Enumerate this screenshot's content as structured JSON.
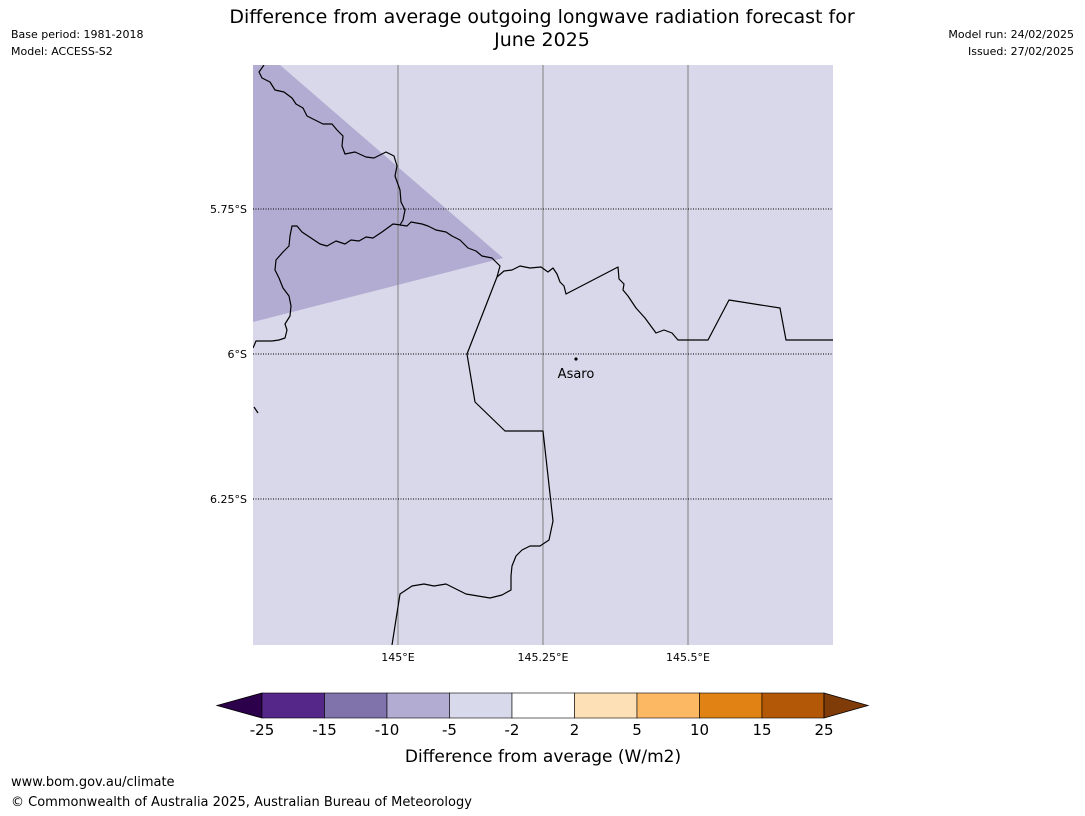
{
  "header": {
    "title_line1": "Difference from average outgoing longwave radiation forecast for",
    "title_line2": "June 2025",
    "base_period": "Base period: 1981-2018",
    "model": "Model: ACCESS-S2",
    "model_run": "Model run: 24/02/2025",
    "issued": "Issued: 27/02/2025"
  },
  "map": {
    "lat_labels": [
      "5.75°S",
      "6°S",
      "6.25°S"
    ],
    "lon_labels": [
      "145°E",
      "145.25°E",
      "145.5°E"
    ],
    "place_label": "Asaro",
    "colors": {
      "background_fill": "#d8d8ea",
      "anomaly_fill": "#b2abd2",
      "gridline_lon": "#808080",
      "border": "#000000"
    }
  },
  "colorbar": {
    "title": "Difference from average (W/m2)",
    "ticks": [
      "-25",
      "-15",
      "-10",
      "-5",
      "-2",
      "2",
      "5",
      "10",
      "15",
      "25"
    ],
    "colors": [
      "#2d004b",
      "#542788",
      "#8073ac",
      "#b2abd2",
      "#d8daeb",
      "#ffffff",
      "#fee0b6",
      "#fdb863",
      "#e08214",
      "#b35806",
      "#7f3b08"
    ]
  },
  "footer": {
    "url": "www.bom.gov.au/climate",
    "copyright": "© Commonwealth of Australia 2025, Australian Bureau of Meteorology"
  }
}
